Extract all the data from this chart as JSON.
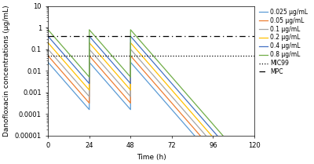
{
  "doses": [
    0.025,
    0.05,
    0.1,
    0.2,
    0.4,
    0.8
  ],
  "colors": [
    "#5b9bd5",
    "#ed7d31",
    "#a5a5a5",
    "#ffc000",
    "#4472c4",
    "#70ad47"
  ],
  "labels": [
    "0.025 μg/mL",
    "0.05 μg/mL",
    "0.1 μg/mL",
    "0.2 μg/mL",
    "0.4 μg/mL",
    "0.8 μg/mL"
  ],
  "MIC99": 0.05,
  "MPC": 0.4,
  "elimination_rate": 0.21,
  "peak_factor": 1.0,
  "dose_intervals": [
    [
      0,
      24
    ],
    [
      24,
      48
    ],
    [
      48,
      120
    ]
  ],
  "ylim_min": 1e-05,
  "ylim_max": 10,
  "xlim_min": 0,
  "xlim_max": 120,
  "xlabel": "Time (h)",
  "ylabel": "Danofloxacin concentrations (μg/mL)",
  "xticks": [
    0,
    24,
    48,
    72,
    96,
    120
  ],
  "yticks": [
    1e-05,
    0.0001,
    0.001,
    0.01,
    0.1,
    1,
    10
  ],
  "ytick_labels": [
    "0.00001",
    "0.0001",
    "0.001",
    "0.01",
    "0.1",
    "1",
    "10"
  ],
  "figsize": [
    4.0,
    2.09
  ],
  "dpi": 100,
  "linewidth": 0.9,
  "legend_fontsize": 5.5,
  "axis_label_fontsize": 6.5,
  "tick_fontsize": 6.0
}
